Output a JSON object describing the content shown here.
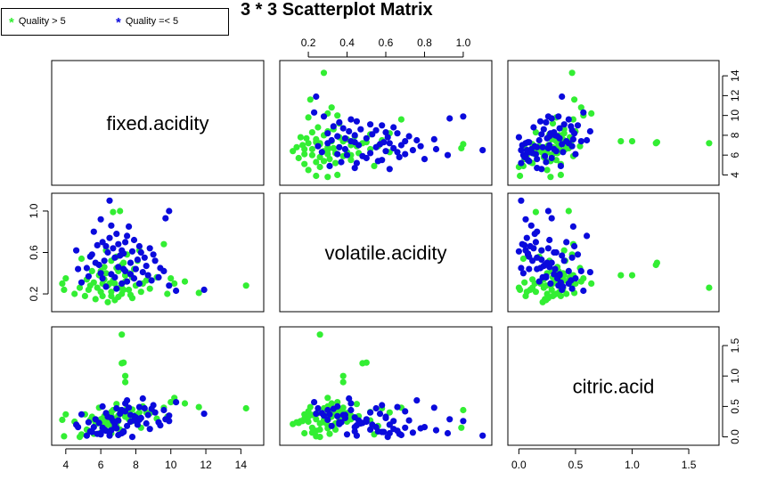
{
  "chart_data": {
    "type": "scatter",
    "title": "3 * 3 Scatterplot Matrix",
    "variables": [
      "fixed.acidity",
      "volatile.acidity",
      "citric.acid"
    ],
    "legend": {
      "placement": "top-left",
      "entries": [
        {
          "label": "Quality > 5",
          "symbol": "*",
          "color": "#33ee33"
        },
        {
          "label": "Quality =< 5",
          "symbol": "*",
          "color": "#0a0adc"
        }
      ]
    },
    "axes": {
      "fixed.acidity": {
        "range": [
          3.5,
          15.0
        ],
        "ticks": [
          "4",
          "6",
          "8",
          "10",
          "12",
          "14"
        ],
        "tick_values": [
          4,
          6,
          8,
          10,
          12,
          14
        ]
      },
      "volatile.acidity": {
        "range": [
          0.08,
          1.12
        ],
        "ticks": [
          "0.2",
          "0.4",
          "0.6",
          "0.8",
          "1.0"
        ],
        "tick_values": [
          0.2,
          0.4,
          0.6,
          0.8,
          1.0
        ],
        "left_ticks": [
          "0.2",
          "0.6",
          "1.0"
        ],
        "left_tick_values": [
          0.2,
          0.6,
          1.0
        ]
      },
      "citric.acid": {
        "range": [
          -0.05,
          1.72
        ],
        "ticks": [
          "0.0",
          "0.5",
          "1.0",
          "1.5"
        ],
        "tick_values": [
          0,
          0.5,
          1.0,
          1.5
        ]
      }
    },
    "series": [
      {
        "name": "Quality > 5",
        "color": "#33ee33",
        "points": [
          [
            7.4,
            0.38,
            0.4
          ],
          [
            7.6,
            0.4,
            0.39
          ],
          [
            7.4,
            0.38,
            0.9
          ],
          [
            7.4,
            0.38,
            1.0
          ],
          [
            7.2,
            0.48,
            1.21
          ],
          [
            7.3,
            0.5,
            1.22
          ],
          [
            7.2,
            0.26,
            1.68
          ],
          [
            14.3,
            0.28,
            0.47
          ],
          [
            11.6,
            0.21,
            0.49
          ],
          [
            10.8,
            0.32,
            0.55
          ],
          [
            10.2,
            0.3,
            0.64
          ],
          [
            10.0,
            0.35,
            0.57
          ],
          [
            9.6,
            0.68,
            0.48
          ],
          [
            8.2,
            0.62,
            0.4
          ],
          [
            8.6,
            0.33,
            0.4
          ],
          [
            6.7,
            0.99,
            0.15
          ],
          [
            7.1,
            1.0,
            0.44
          ],
          [
            6.6,
            0.18,
            0.06
          ],
          [
            5.6,
            0.31,
            0.05
          ],
          [
            6.0,
            0.22,
            0.07
          ],
          [
            5.2,
            0.34,
            0.12
          ],
          [
            4.8,
            0.26,
            0.0
          ],
          [
            4.9,
            0.54,
            0.04
          ],
          [
            3.8,
            0.3,
            0.28
          ],
          [
            4.0,
            0.35,
            0.37
          ],
          [
            3.9,
            0.24,
            0.01
          ],
          [
            4.5,
            0.2,
            0.25
          ],
          [
            5.1,
            0.18,
            0.37
          ],
          [
            6.8,
            0.3,
            0.3
          ],
          [
            7.0,
            0.42,
            0.35
          ],
          [
            6.4,
            0.28,
            0.24
          ],
          [
            6.2,
            0.34,
            0.22
          ],
          [
            7.6,
            0.24,
            0.29
          ],
          [
            8.0,
            0.28,
            0.36
          ],
          [
            7.8,
            0.36,
            0.45
          ],
          [
            6.9,
            0.45,
            0.54
          ],
          [
            7.4,
            0.32,
            0.33
          ],
          [
            6.3,
            0.4,
            0.25
          ],
          [
            5.8,
            0.26,
            0.22
          ],
          [
            6.6,
            0.22,
            0.36
          ],
          [
            7.2,
            0.2,
            0.42
          ],
          [
            8.4,
            0.3,
            0.5
          ],
          [
            5.9,
            0.38,
            0.48
          ],
          [
            6.5,
            0.3,
            0.19
          ],
          [
            7.0,
            0.17,
            0.26
          ],
          [
            7.9,
            0.44,
            0.32
          ],
          [
            5.4,
            0.28,
            0.28
          ],
          [
            6.1,
            0.18,
            0.3
          ],
          [
            7.3,
            0.24,
            0.38
          ],
          [
            6.7,
            0.33,
            0.44
          ],
          [
            8.8,
            0.25,
            0.39
          ],
          [
            9.2,
            0.36,
            0.3
          ],
          [
            6.2,
            0.46,
            0.34
          ],
          [
            6.9,
            0.56,
            0.18
          ],
          [
            5.7,
            0.15,
            0.23
          ],
          [
            7.7,
            0.19,
            0.31
          ],
          [
            6.0,
            0.42,
            0.29
          ],
          [
            8.1,
            0.52,
            0.27
          ],
          [
            6.4,
            0.12,
            0.21
          ],
          [
            7.5,
            0.58,
            0.47
          ],
          [
            5.5,
            0.42,
            0.33
          ],
          [
            6.8,
            0.14,
            0.24
          ],
          [
            7.1,
            0.26,
            0.12
          ],
          [
            8.3,
            0.22,
            0.15
          ],
          [
            6.3,
            0.62,
            0.2
          ],
          [
            6.6,
            0.52,
            0.41
          ],
          [
            9.8,
            0.2,
            0.33
          ],
          [
            5.3,
            0.24,
            0.1
          ],
          [
            7.8,
            0.16,
            0.26
          ],
          [
            6.1,
            0.3,
            0.14
          ]
        ]
      },
      {
        "name": "Quality =< 5",
        "color": "#0a0adc",
        "points": [
          [
            6.5,
            1.1,
            0.02
          ],
          [
            6.0,
            0.92,
            0.06
          ],
          [
            9.9,
            1.0,
            0.26
          ],
          [
            9.7,
            0.93,
            0.29
          ],
          [
            11.9,
            0.24,
            0.38
          ],
          [
            10.3,
            0.23,
            0.57
          ],
          [
            9.6,
            0.42,
            0.44
          ],
          [
            9.9,
            0.28,
            0.35
          ],
          [
            8.5,
            0.55,
            0.47
          ],
          [
            8.2,
            0.66,
            0.49
          ],
          [
            7.9,
            0.72,
            0.27
          ],
          [
            7.4,
            0.7,
            0.42
          ],
          [
            5.6,
            0.8,
            0.16
          ],
          [
            4.6,
            0.62,
            0.2
          ],
          [
            5.4,
            0.56,
            0.09
          ],
          [
            4.7,
            0.44,
            0.16
          ],
          [
            4.9,
            0.31,
            0.37
          ],
          [
            5.5,
            0.58,
            0.08
          ],
          [
            6.1,
            0.7,
            0.15
          ],
          [
            6.3,
            0.66,
            0.1
          ],
          [
            7.3,
            0.59,
            0.08
          ],
          [
            6.6,
            0.39,
            0.31
          ],
          [
            7.0,
            0.46,
            0.27
          ],
          [
            7.2,
            0.62,
            0.06
          ],
          [
            7.7,
            0.5,
            0.25
          ],
          [
            8.0,
            0.44,
            0.32
          ],
          [
            8.7,
            0.38,
            0.36
          ],
          [
            9.1,
            0.52,
            0.4
          ],
          [
            6.8,
            0.36,
            0.21
          ],
          [
            7.5,
            0.32,
            0.18
          ],
          [
            6.4,
            0.6,
            0.33
          ],
          [
            5.8,
            0.67,
            0.05
          ],
          [
            6.9,
            0.78,
            0.14
          ],
          [
            7.6,
            0.85,
            0.48
          ],
          [
            8.4,
            0.41,
            0.63
          ],
          [
            8.9,
            0.33,
            0.46
          ],
          [
            6.2,
            0.52,
            0.12
          ],
          [
            5.9,
            0.48,
            0.23
          ],
          [
            7.1,
            0.57,
            0.38
          ],
          [
            7.8,
            0.61,
            0.0
          ],
          [
            6.7,
            0.64,
            0.26
          ],
          [
            8.1,
            0.53,
            0.2
          ],
          [
            6.0,
            0.4,
            0.04
          ],
          [
            5.2,
            0.45,
            0.02
          ],
          [
            7.4,
            0.42,
            0.55
          ],
          [
            8.3,
            0.6,
            0.31
          ],
          [
            9.3,
            0.36,
            0.24
          ],
          [
            6.5,
            0.74,
            0.07
          ],
          [
            7.2,
            0.3,
            0.44
          ],
          [
            6.8,
            0.55,
            0.16
          ],
          [
            7.9,
            0.35,
            0.34
          ],
          [
            5.7,
            0.5,
            0.29
          ],
          [
            6.3,
            0.27,
            0.39
          ],
          [
            8.6,
            0.47,
            0.22
          ],
          [
            7.0,
            0.68,
            0.03
          ],
          [
            9.0,
            0.58,
            0.52
          ],
          [
            6.6,
            0.86,
            0.11
          ],
          [
            7.5,
            0.76,
            0.6
          ],
          [
            8.8,
            0.64,
            0.13
          ],
          [
            6.1,
            0.35,
            0.5
          ],
          [
            7.3,
            0.44,
            0.09
          ],
          [
            5.3,
            0.37,
            0.24
          ],
          [
            8.2,
            0.3,
            0.28
          ],
          [
            6.9,
            0.25,
            0.47
          ],
          [
            7.7,
            0.39,
            0.36
          ],
          [
            9.4,
            0.45,
            0.19
          ]
        ]
      }
    ],
    "grid": false
  }
}
